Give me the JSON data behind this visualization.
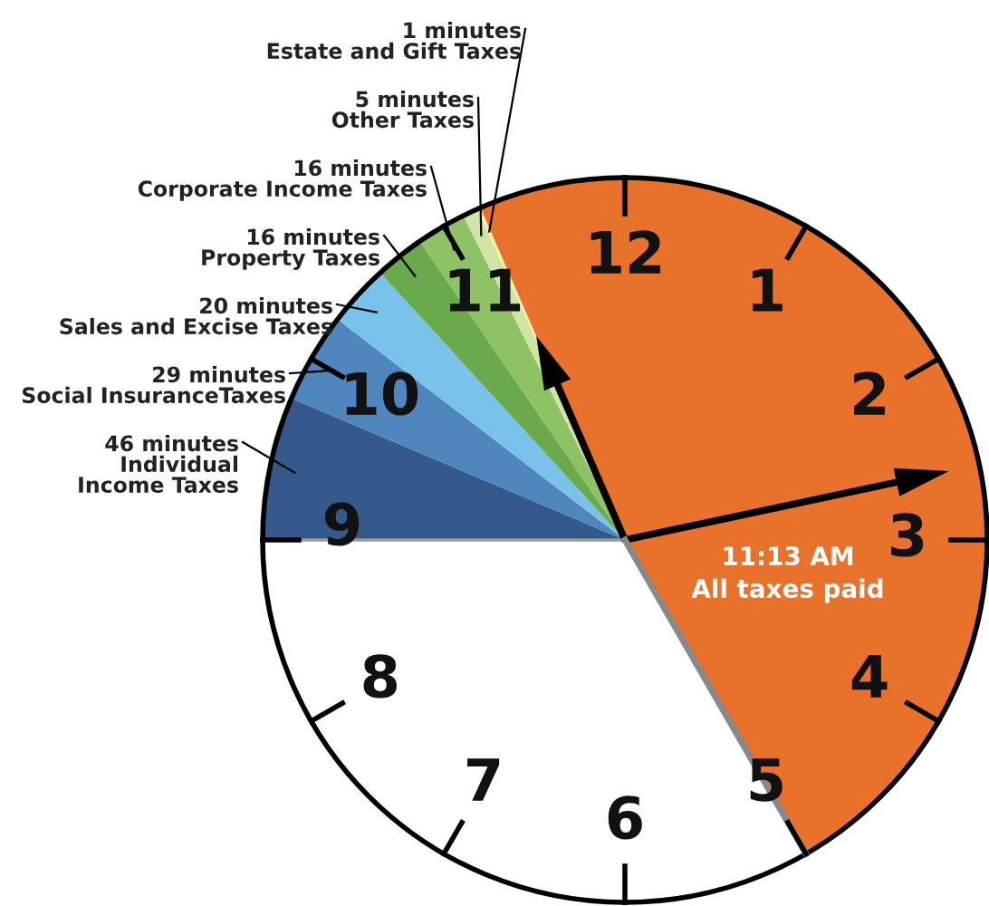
{
  "chart_data": {
    "type": "pie",
    "categories": [
      "Individual Income Taxes",
      "Social InsuranceTaxes",
      "Sales and Excise Taxes",
      "Property Taxes",
      "Corporate Income Taxes",
      "Other Taxes",
      "Estate and Gift Taxes",
      null,
      null
    ],
    "values": [
      46,
      29,
      20,
      16,
      16,
      5,
      1,
      347,
      240
    ],
    "value_labels": [
      "46 minutes",
      "29 minutes",
      "20 minutes",
      "16 minutes",
      "16 minutes",
      "5 minutes",
      "1 minutes",
      null,
      null
    ],
    "colors": [
      "#34598a",
      "#4f86bd",
      "#79c2ea",
      "#6aaa4c",
      "#8fc265",
      "#cfe5a4",
      "#f6f0a8",
      "#e8712c",
      "#ffffff"
    ],
    "annotations": [
      "12",
      "1",
      "2",
      "3",
      "4",
      "5",
      "6",
      "7",
      "8",
      "9",
      "10",
      "11",
      "11:13 AM",
      "All taxes paid"
    ]
  }
}
